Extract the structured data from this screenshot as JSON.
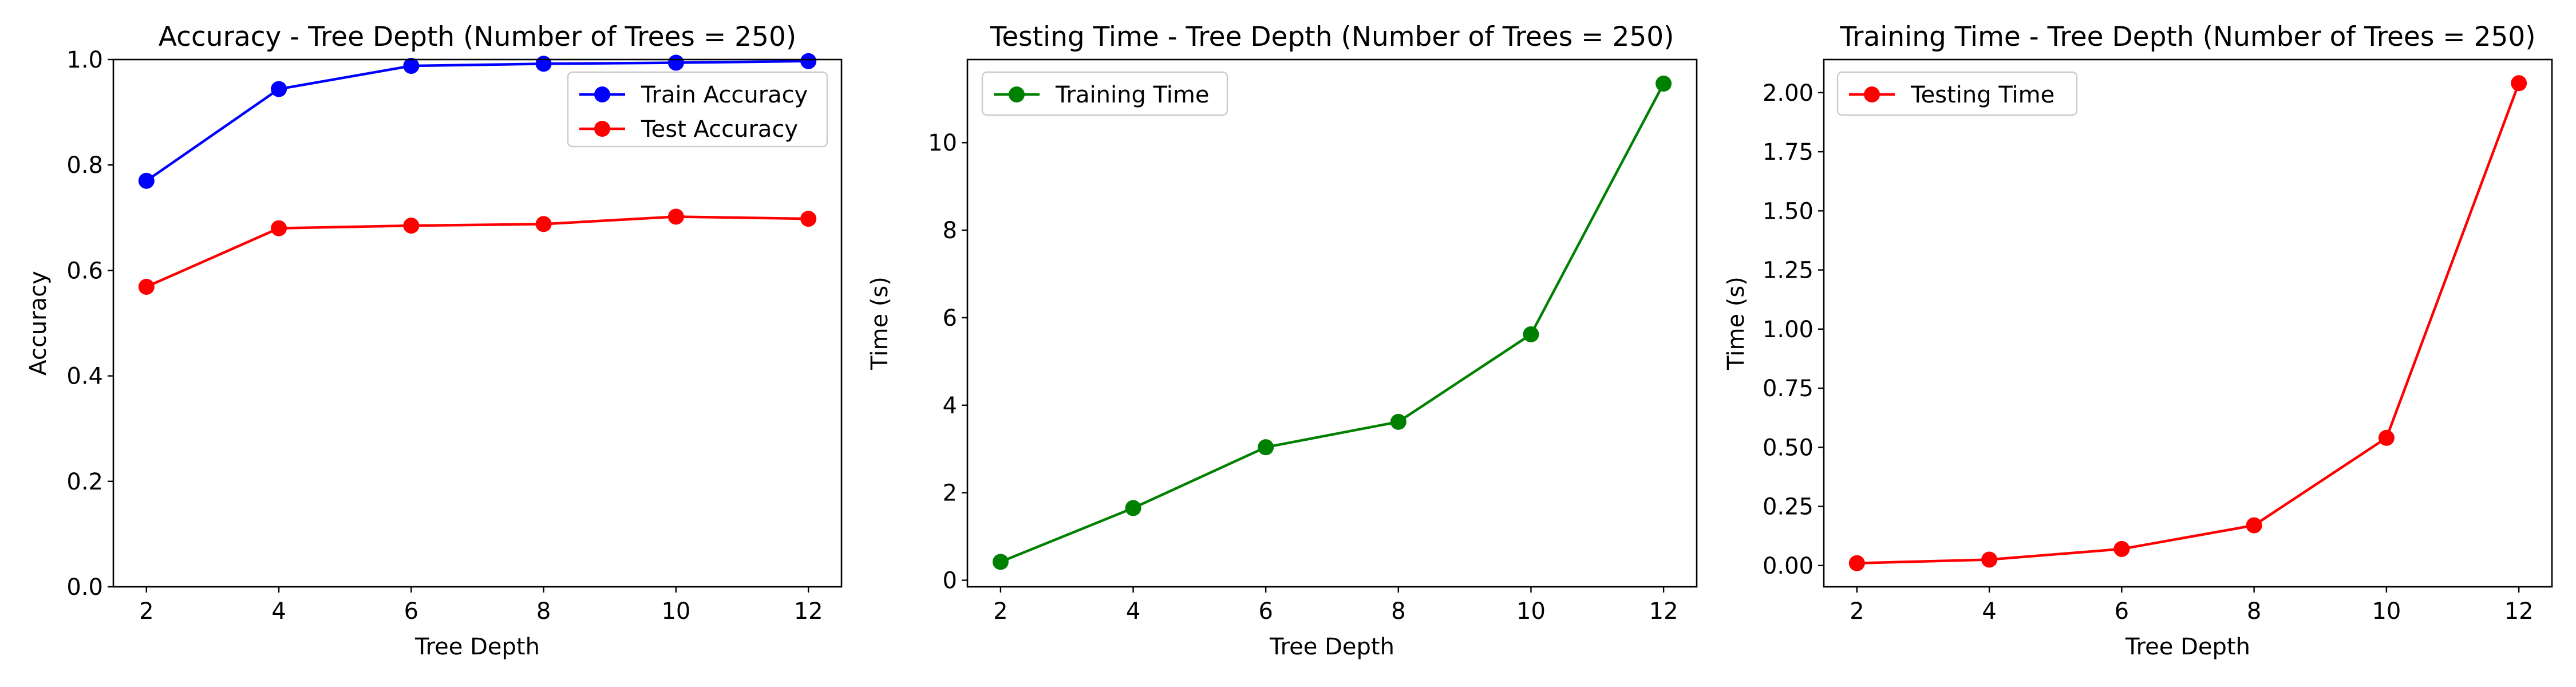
{
  "chart_data": [
    {
      "type": "line",
      "title": "Accuracy - Tree Depth (Number of Trees = 250)",
      "xlabel": "Tree Depth",
      "ylabel": "Accuracy",
      "x": [
        2,
        4,
        6,
        8,
        10,
        12
      ],
      "xlim": [
        1.5,
        12.5
      ],
      "ylim": [
        0,
        1
      ],
      "xticks": [
        2,
        4,
        6,
        8,
        10,
        12
      ],
      "yticks": [
        0.0,
        0.2,
        0.4,
        0.6,
        0.8,
        1.0
      ],
      "ytick_labels": [
        "0.0",
        "0.2",
        "0.4",
        "0.6",
        "0.8",
        "1.0"
      ],
      "legend_position": "top-right",
      "grid": false,
      "series": [
        {
          "name": "Train Accuracy",
          "color": "#0000ff",
          "values": [
            0.77,
            0.944,
            0.988,
            0.992,
            0.994,
            0.997
          ]
        },
        {
          "name": "Test Accuracy",
          "color": "#ff0000",
          "values": [
            0.569,
            0.68,
            0.685,
            0.688,
            0.702,
            0.698
          ]
        }
      ]
    },
    {
      "type": "line",
      "title": "Testing Time - Tree Depth (Number of Trees = 250)",
      "xlabel": "Tree Depth",
      "ylabel": "Time (s)",
      "x": [
        2,
        4,
        6,
        8,
        10,
        12
      ],
      "xlim": [
        1.5,
        12.5
      ],
      "ylim": [
        -0.15,
        11.9
      ],
      "xticks": [
        2,
        4,
        6,
        8,
        10,
        12
      ],
      "yticks": [
        0,
        2,
        4,
        6,
        8,
        10
      ],
      "ytick_labels": [
        "0",
        "2",
        "4",
        "6",
        "8",
        "10"
      ],
      "legend_position": "top-left",
      "grid": false,
      "series": [
        {
          "name": "Training Time",
          "color": "#008000",
          "values": [
            0.42,
            1.65,
            3.04,
            3.62,
            5.62,
            11.35
          ]
        }
      ]
    },
    {
      "type": "line",
      "title": "Training Time - Tree Depth (Number of Trees = 250)",
      "xlabel": "Tree Depth",
      "ylabel": "Time (s)",
      "x": [
        2,
        4,
        6,
        8,
        10,
        12
      ],
      "xlim": [
        1.5,
        12.5
      ],
      "ylim": [
        -0.09,
        2.14
      ],
      "xticks": [
        2,
        4,
        6,
        8,
        10,
        12
      ],
      "yticks": [
        0.0,
        0.25,
        0.5,
        0.75,
        1.0,
        1.25,
        1.5,
        1.75,
        2.0
      ],
      "ytick_labels": [
        "0.00",
        "0.25",
        "0.50",
        "0.75",
        "1.00",
        "1.25",
        "1.50",
        "1.75",
        "2.00"
      ],
      "legend_position": "top-left",
      "grid": false,
      "series": [
        {
          "name": "Testing Time",
          "color": "#ff0000",
          "values": [
            0.01,
            0.025,
            0.07,
            0.17,
            0.54,
            2.04
          ]
        }
      ]
    }
  ]
}
